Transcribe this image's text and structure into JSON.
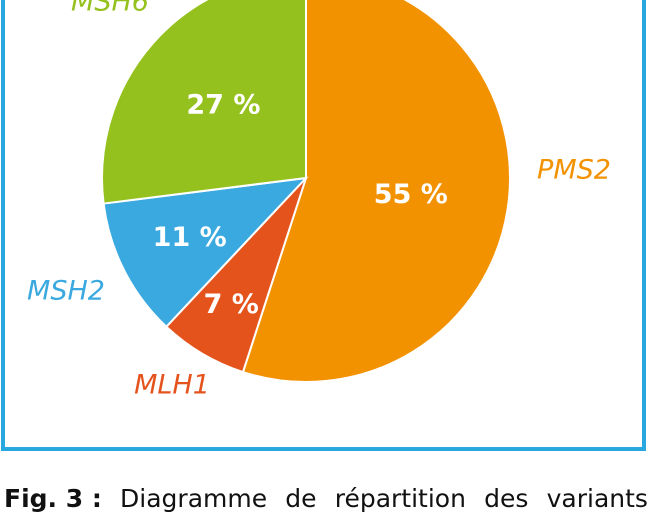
{
  "chart_data": {
    "type": "pie",
    "slices": [
      {
        "label": "PMS2",
        "value": 55,
        "value_label": "55 %",
        "color": "#F39200"
      },
      {
        "label": "MLH1",
        "value": 7,
        "value_label": "7 %",
        "color": "#E5531D"
      },
      {
        "label": "MSH2",
        "value": 11,
        "value_label": "11 %",
        "color": "#3AA9DF"
      },
      {
        "label": "MSH6",
        "value": 27,
        "value_label": "27 %",
        "color": "#95C11F"
      }
    ],
    "start": "12 o'clock",
    "direction": "clockwise",
    "frame_color": "#29A8E0"
  },
  "caption": {
    "label": "Fig. 3 :",
    "words": [
      "Diagramme",
      "de",
      "répartition",
      "des",
      "variants"
    ]
  }
}
